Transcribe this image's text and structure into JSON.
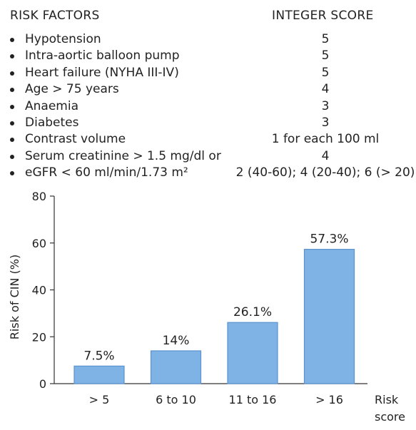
{
  "table": {
    "header_left": "RISK FACTORS",
    "header_right": "INTEGER SCORE",
    "rows": [
      {
        "factor": "Hypotension",
        "score": "5",
        "bullet": true
      },
      {
        "factor": "Intra-aortic balloon pump",
        "score": "5",
        "bullet": true
      },
      {
        "factor": "Heart failure (NYHA III-IV)",
        "score": "5",
        "bullet": true
      },
      {
        "factor": "Age > 75 years",
        "score": "4",
        "bullet": true
      },
      {
        "factor": "Anaemia",
        "score": "3",
        "bullet": true
      },
      {
        "factor": "Diabetes",
        "score": "3",
        "bullet": true
      },
      {
        "factor": "Contrast volume",
        "score": "1 for each 100 ml",
        "bullet": true
      },
      {
        "factor": "Serum creatinine > 1.5 mg/dl or",
        "score": "4",
        "bullet": true
      },
      {
        "factor": "eGFR < 60 ml/min/1.73 m²",
        "score": "2 (40-60); 4 (20-40); 6 (> 20)",
        "bullet": true
      }
    ]
  },
  "chart_data": {
    "type": "bar",
    "categories": [
      "> 5",
      "6 to 10",
      "11 to 16",
      "> 16"
    ],
    "values": [
      7.5,
      14,
      26.1,
      57.3
    ],
    "value_labels": [
      "7.5%",
      "14%",
      "26.1%",
      "57.3%"
    ],
    "ylabel": "Risk of CIN (%)",
    "xlabel": "Risk score",
    "xlabel_lines": [
      "Risk",
      "score"
    ],
    "ylim": [
      0,
      80
    ],
    "yticks": [
      0,
      20,
      40,
      60,
      80
    ],
    "grid": false,
    "bar_color": "#7fb2e5",
    "bar_edge_color": "#5b93cf"
  }
}
